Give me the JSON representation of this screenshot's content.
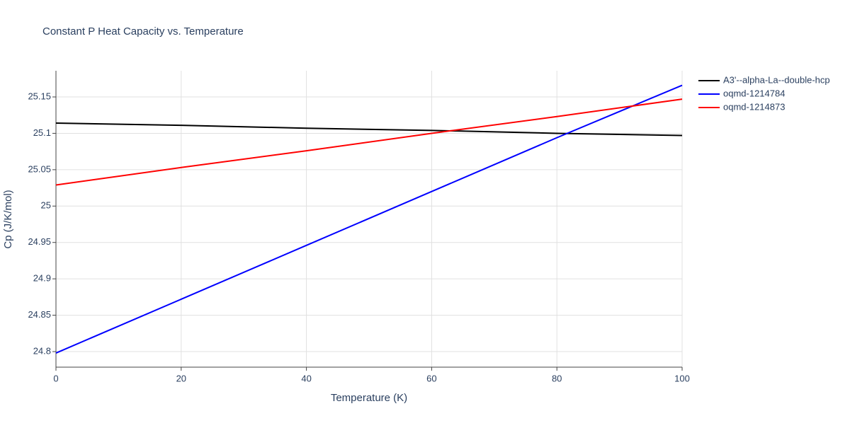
{
  "chart_data": {
    "type": "line",
    "title": "Constant P Heat Capacity vs. Temperature",
    "x_label": "Temperature (K)",
    "y_label": "Cp (J/K/mol)",
    "x": [
      0,
      20,
      40,
      60,
      80,
      100
    ],
    "series": [
      {
        "name": "A3'--alpha-La--double-hcp",
        "color": "#000000",
        "values": [
          25.114,
          25.111,
          25.107,
          25.104,
          25.1,
          25.097
        ]
      },
      {
        "name": "oqmd-1214784",
        "color": "#0000ff",
        "values": [
          24.798,
          24.872,
          24.946,
          25.02,
          25.094,
          25.166
        ]
      },
      {
        "name": "oqmd-1214873",
        "color": "#ff0000",
        "values": [
          25.029,
          25.053,
          25.076,
          25.1,
          25.123,
          25.147
        ]
      }
    ],
    "xlim": [
      0,
      100
    ],
    "xticks": [
      0,
      20,
      40,
      60,
      80,
      100
    ],
    "ylim": [
      24.7786,
      25.186
    ],
    "yticks": [
      24.8,
      24.85,
      24.9,
      24.95,
      25,
      25.05,
      25.1,
      25.15
    ],
    "grid": true
  }
}
